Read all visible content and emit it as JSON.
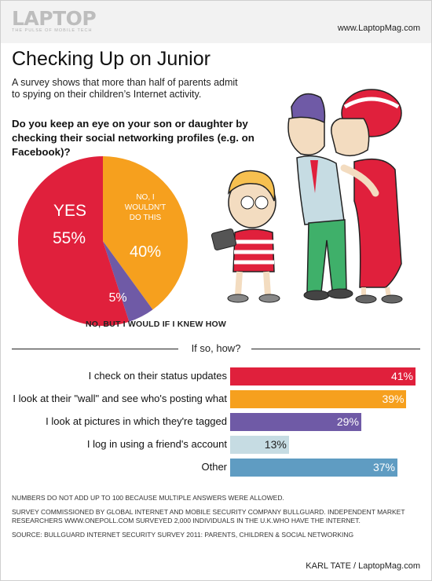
{
  "header": {
    "logo": "LAPTOP",
    "logo_tagline": "THE PULSE OF MOBILE TECH",
    "site_url": "www.LaptopMag.com"
  },
  "title": "Checking Up on Junior",
  "subtitle": "A survey shows that more than half of parents admit to spying on their children’s Internet activity.",
  "question": "Do you keep an eye on your son or daughter by checking their social networking profiles (e.g. on Facebook)?",
  "colors": {
    "red": "#e0203c",
    "orange": "#f6a01e",
    "purple": "#6f5aa6",
    "light_blue": "#c6dce3",
    "steel_blue": "#5f9cc2"
  },
  "section_title": "If so, how?",
  "chart_data": [
    {
      "type": "pie",
      "slices": [
        {
          "label": "YES",
          "value": 55,
          "value_label": "55%",
          "color": "#e0203c"
        },
        {
          "label": "NO, I WOULDN'T DO THIS",
          "value": 40,
          "value_label": "40%",
          "color": "#f6a01e"
        },
        {
          "label": "NO, BUT I WOULD IF I KNEW HOW",
          "value": 5,
          "value_label": "5%",
          "color": "#6f5aa6"
        }
      ]
    },
    {
      "type": "bar",
      "orientation": "horizontal",
      "categories": [
        "I check on their status updates",
        "I look at their \"wall\" and see who's posting what",
        "I look at pictures in which they're tagged",
        "I log in using a friend's account",
        "Other"
      ],
      "values": [
        41,
        39,
        29,
        13,
        37
      ],
      "value_labels": [
        "41%",
        "39%",
        "29%",
        "13%",
        "37%"
      ],
      "colors": [
        "#e0203c",
        "#f6a01e",
        "#6f5aa6",
        "#c6dce3",
        "#5f9cc2"
      ],
      "xlim": [
        0,
        41
      ]
    }
  ],
  "notes": [
    "Numbers do not add up to 100 because multiple answers were allowed.",
    "Survey commissioned by Global Internet and Mobile Security company BullGuard. Independent market researchers www.onepoll.com surveyed 2,000 individuals in the U.K.who have the Internet.",
    "Source: BullGuard Internet Security Survey 2011: Parents, Children & Social Networking"
  ],
  "credit": "KARL TATE / LaptopMag.com"
}
